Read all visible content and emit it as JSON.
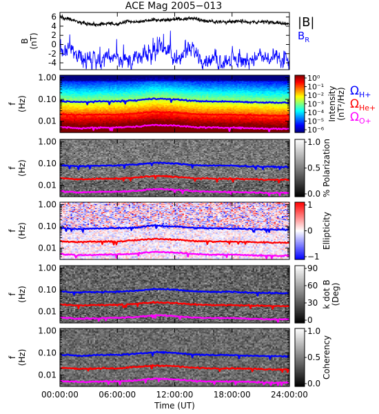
{
  "title": "ACE Mag 2005−013",
  "panel_b": {
    "ylabel_lines": [
      "B",
      "(nT)"
    ],
    "legend": [
      {
        "text": "|B|",
        "color": "#000000"
      },
      {
        "text": "B",
        "sub": "R",
        "color": "#0000ff"
      }
    ]
  },
  "freq_panels": {
    "ylabel_lines": [
      "f",
      "(Hz)"
    ],
    "yticks": [
      "1.00",
      "0.10",
      "0.01"
    ]
  },
  "gyro_legend": [
    {
      "sym": "Ω",
      "sub": "H+",
      "color": "#0000ff"
    },
    {
      "sym": "Ω",
      "sub": "He+",
      "color": "#ff0000"
    },
    {
      "sym": "Ω",
      "sub": "O+",
      "color": "#ff00ff"
    }
  ],
  "colorbars": [
    {
      "label_lines": [
        "Intensity",
        "(nT²/Hz)"
      ],
      "ticks": [
        "10⁰",
        "10⁻¹",
        "10⁻²",
        "10⁻³",
        "10⁻⁴",
        "10⁻⁵",
        "10⁻⁶"
      ]
    },
    {
      "label_lines": [
        "% Polarization"
      ],
      "ticks": [
        "1.0",
        "0.5",
        "0.0"
      ]
    },
    {
      "label_lines": [
        "Ellipticity"
      ],
      "ticks": [
        "1",
        "0",
        "−1"
      ]
    },
    {
      "label_lines": [
        "k dot B",
        "(Deg)"
      ],
      "ticks": [
        "90",
        "60",
        "30",
        "0"
      ]
    },
    {
      "label_lines": [
        "Coherency"
      ],
      "ticks": [
        "1.0",
        "0.5",
        "0.0"
      ]
    }
  ],
  "xaxis": {
    "ticks": [
      "00:00:00",
      "06:00:00",
      "12:00:00",
      "18:00:00",
      "24:00:00"
    ],
    "label": "Time (UT)"
  },
  "chart_data": {
    "type": "line",
    "title": "ACE Mag 2005−013",
    "x_unit": "hours UT",
    "xlim": [
      0,
      24
    ],
    "magnetic_field": {
      "ylabel": "B (nT)",
      "ylim": [
        -5.5,
        7
      ],
      "yticks": [
        6,
        4,
        2,
        0,
        -2,
        -4
      ],
      "series": [
        {
          "name": "|B|",
          "color": "#000000",
          "x": [
            0,
            1,
            2,
            3,
            4,
            5,
            6,
            7,
            8,
            9,
            10,
            11,
            12,
            13,
            14,
            15,
            16,
            17,
            18,
            19,
            20,
            21,
            22,
            23,
            24
          ],
          "values": [
            6.0,
            5.5,
            4.8,
            4.5,
            4.3,
            4.6,
            4.4,
            5.0,
            4.9,
            5.2,
            5.4,
            5.3,
            5.6,
            5.5,
            5.8,
            5.2,
            5.0,
            4.9,
            5.1,
            5.0,
            4.8,
            5.0,
            4.9,
            4.6,
            4.5
          ]
        },
        {
          "name": "B_R",
          "color": "#0000ff",
          "x": [
            0,
            1,
            2,
            3,
            4,
            5,
            6,
            7,
            8,
            9,
            10,
            11,
            12,
            13,
            14,
            15,
            16,
            17,
            18,
            19,
            20,
            21,
            22,
            23,
            24
          ],
          "values": [
            -1.0,
            -1.5,
            -2.5,
            -3.0,
            -3.5,
            -3.0,
            -2.0,
            -3.8,
            -3.2,
            -2.5,
            -1.5,
            0.0,
            -3.8,
            -2.0,
            -1.5,
            -3.0,
            -3.6,
            -3.5,
            -3.4,
            -3.6,
            -3.0,
            -2.8,
            -3.2,
            -3.5,
            -3.8
          ]
        }
      ]
    },
    "spectrogram_panels": {
      "ylabel": "f (Hz)",
      "yscale": "log",
      "ylim": [
        0.003,
        1.3
      ],
      "yticks": [
        1.0,
        0.1,
        0.01
      ],
      "panels": [
        "Intensity (nT²/Hz)",
        "% Polarization",
        "Ellipticity",
        "k dot B (Deg)",
        "Coherency"
      ]
    },
    "gyrofrequency_series": [
      {
        "name": "Ω_H+",
        "color": "#0000ff",
        "x": [
          0,
          2,
          4,
          6,
          8,
          10,
          12,
          14,
          16,
          18,
          20,
          22,
          24
        ],
        "values": [
          0.085,
          0.075,
          0.08,
          0.082,
          0.09,
          0.11,
          0.1,
          0.085,
          0.08,
          0.08,
          0.075,
          0.072,
          0.07
        ]
      },
      {
        "name": "Ω_He+",
        "color": "#ff0000",
        "x": [
          0,
          2,
          4,
          6,
          8,
          10,
          12,
          14,
          16,
          18,
          20,
          22,
          24
        ],
        "values": [
          0.021,
          0.019,
          0.02,
          0.02,
          0.023,
          0.027,
          0.025,
          0.021,
          0.02,
          0.02,
          0.019,
          0.018,
          0.018
        ]
      },
      {
        "name": "Ω_O+",
        "color": "#ff00ff",
        "x": [
          0,
          2,
          4,
          6,
          8,
          10,
          12,
          14,
          16,
          18,
          20,
          22,
          24
        ],
        "values": [
          0.0053,
          0.0047,
          0.005,
          0.0051,
          0.0056,
          0.0068,
          0.0062,
          0.0053,
          0.005,
          0.005,
          0.0047,
          0.0045,
          0.0044
        ]
      }
    ]
  }
}
